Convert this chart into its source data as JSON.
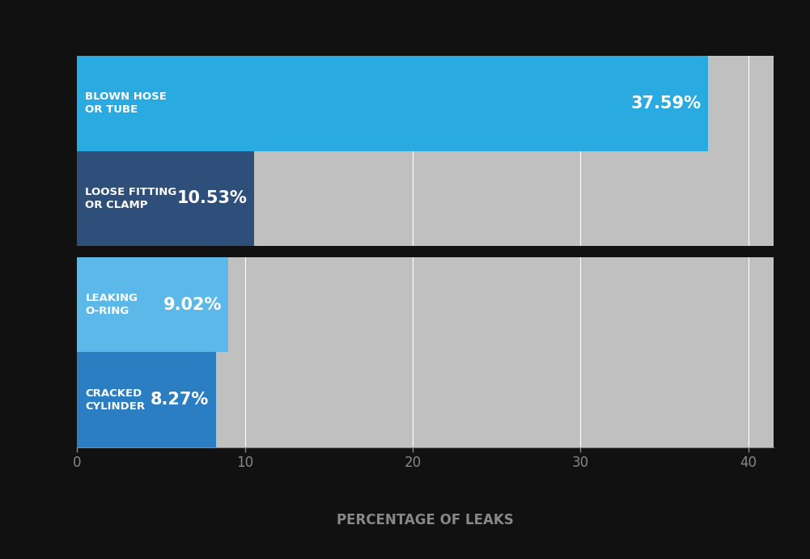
{
  "categories": [
    "BLOWN HOSE\nOR TUBE",
    "LOOSE FITTING\nOR CLAMP",
    "LEAKING\nO-RING",
    "CRACKED\nCYLINDER"
  ],
  "values": [
    37.59,
    10.53,
    9.02,
    8.27
  ],
  "labels": [
    "37.59%",
    "10.53%",
    "9.02%",
    "8.27%"
  ],
  "bar_colors": [
    "#29ABE2",
    "#2E4F7A",
    "#5BB8E8",
    "#2B7EC1"
  ],
  "panel_bg": "#C0C0C0",
  "fig_bg": "#111111",
  "xlabel": "PERCENTAGE OF LEAKS",
  "xlim": [
    0,
    41.5
  ],
  "xticks": [
    0,
    10,
    20,
    30,
    40
  ],
  "text_color": "#FFFFFF",
  "tick_label_color": "#888888",
  "xlabel_color": "#888888",
  "bar_height": 1.0,
  "label_fontsize": 9.5,
  "pct_fontsize": 15,
  "xlabel_fontsize": 12,
  "tick_fontsize": 12
}
